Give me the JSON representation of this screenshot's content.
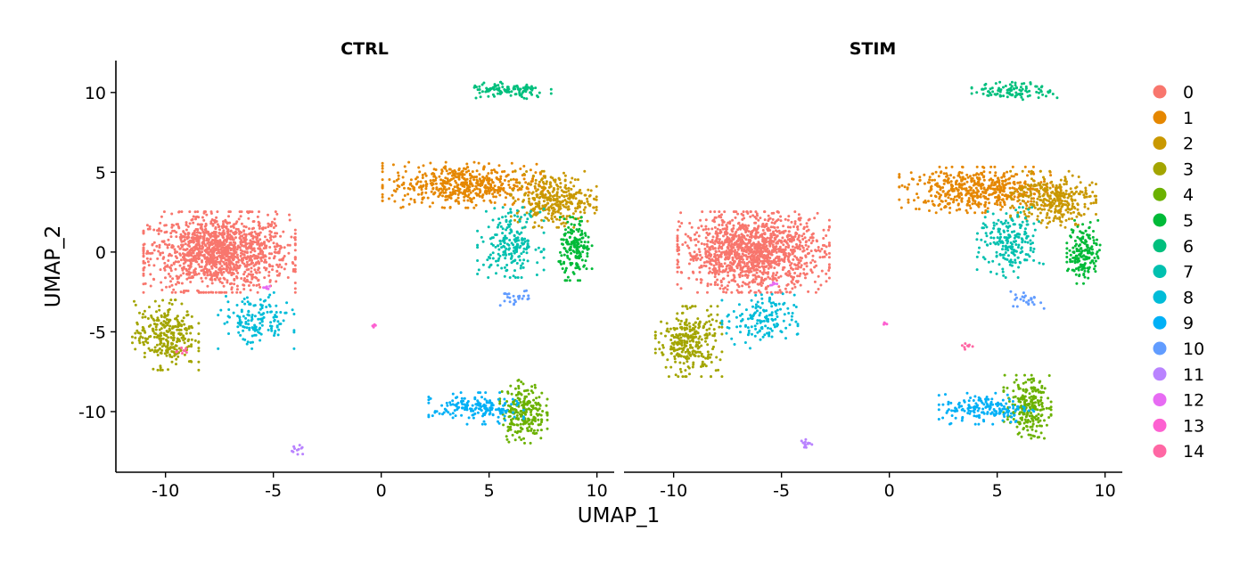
{
  "chart_data": {
    "type": "scatter",
    "facets": [
      {
        "key": "ctrl",
        "title": "CTRL"
      },
      {
        "key": "stim",
        "title": "STIM"
      }
    ],
    "xlabel": "UMAP_1",
    "ylabel": "UMAP_2",
    "xlim": [
      -12.3,
      10.8
    ],
    "ylim": [
      -13.8,
      12.0
    ],
    "x_ticks": [
      -10,
      -5,
      0,
      5,
      10
    ],
    "x_tick_labels": [
      "-10",
      "-5",
      "0",
      "5",
      "10"
    ],
    "y_ticks": [
      10,
      5,
      0,
      -5,
      -10
    ],
    "y_tick_labels": [
      "10",
      "5",
      "0",
      "-5",
      "-10"
    ],
    "grid": false,
    "legend_position": "right",
    "legend": [
      {
        "label": "0",
        "color": "#F8766D"
      },
      {
        "label": "1",
        "color": "#E58700"
      },
      {
        "label": "2",
        "color": "#C99800"
      },
      {
        "label": "3",
        "color": "#A3A500"
      },
      {
        "label": "4",
        "color": "#6BB100"
      },
      {
        "label": "5",
        "color": "#00BA38"
      },
      {
        "label": "6",
        "color": "#00BF7D"
      },
      {
        "label": "7",
        "color": "#00C0AF"
      },
      {
        "label": "8",
        "color": "#00BCD8"
      },
      {
        "label": "9",
        "color": "#00B0F6"
      },
      {
        "label": "10",
        "color": "#619CFF"
      },
      {
        "label": "11",
        "color": "#B983FF"
      },
      {
        "label": "12",
        "color": "#E76BF3"
      },
      {
        "label": "13",
        "color": "#FD61D1"
      },
      {
        "label": "14",
        "color": "#FF67A4"
      }
    ],
    "clusters": {
      "ctrl": [
        {
          "cluster": "0",
          "n": 1300,
          "cx": -7.5,
          "cy": 0.0,
          "sx": 1.6,
          "sy": 1.15
        },
        {
          "cluster": "1",
          "n": 520,
          "cx": 3.8,
          "cy": 4.2,
          "sx": 1.7,
          "sy": 0.65
        },
        {
          "cluster": "2",
          "n": 320,
          "cx": 8.0,
          "cy": 3.3,
          "sx": 0.9,
          "sy": 0.8
        },
        {
          "cluster": "3",
          "n": 300,
          "cx": -10.0,
          "cy": -5.2,
          "sx": 0.7,
          "sy": 1.0
        },
        {
          "cluster": "4",
          "n": 230,
          "cx": 6.6,
          "cy": -10.0,
          "sx": 0.5,
          "sy": 0.9
        },
        {
          "cluster": "5",
          "n": 170,
          "cx": 9.0,
          "cy": 0.2,
          "sx": 0.35,
          "sy": 0.9
        },
        {
          "cluster": "6",
          "n": 110,
          "cx": 5.9,
          "cy": 10.1,
          "sx": 0.9,
          "sy": 0.25
        },
        {
          "cluster": "7",
          "n": 210,
          "cx": 6.0,
          "cy": 0.6,
          "sx": 0.7,
          "sy": 1.0
        },
        {
          "cluster": "8",
          "n": 150,
          "cx": -5.8,
          "cy": -4.3,
          "sx": 0.8,
          "sy": 0.8
        },
        {
          "cluster": "9",
          "n": 170,
          "cx": 4.4,
          "cy": -9.8,
          "sx": 1.0,
          "sy": 0.45
        },
        {
          "cluster": "10",
          "n": 25,
          "cx": 6.2,
          "cy": -2.9,
          "sx": 0.35,
          "sy": 0.25
        },
        {
          "cluster": "11",
          "n": 12,
          "cx": -3.9,
          "cy": -12.4,
          "sx": 0.2,
          "sy": 0.15
        },
        {
          "cluster": "12",
          "n": 6,
          "cx": -5.3,
          "cy": -2.2,
          "sx": 0.12,
          "sy": 0.05
        },
        {
          "cluster": "13",
          "n": 5,
          "cx": -0.3,
          "cy": -4.6,
          "sx": 0.06,
          "sy": 0.06
        },
        {
          "cluster": "14",
          "n": 8,
          "cx": -9.3,
          "cy": -6.2,
          "sx": 0.15,
          "sy": 0.12
        }
      ],
      "stim": [
        {
          "cluster": "0",
          "n": 1300,
          "cx": -6.3,
          "cy": 0.0,
          "sx": 1.6,
          "sy": 1.15
        },
        {
          "cluster": "1",
          "n": 520,
          "cx": 4.2,
          "cy": 3.9,
          "sx": 1.7,
          "sy": 0.65
        },
        {
          "cluster": "2",
          "n": 320,
          "cx": 7.6,
          "cy": 3.3,
          "sx": 0.9,
          "sy": 0.8
        },
        {
          "cluster": "3",
          "n": 300,
          "cx": -9.3,
          "cy": -5.6,
          "sx": 0.7,
          "sy": 1.0
        },
        {
          "cluster": "4",
          "n": 230,
          "cx": 6.4,
          "cy": -9.7,
          "sx": 0.5,
          "sy": 0.9
        },
        {
          "cluster": "5",
          "n": 170,
          "cx": 9.0,
          "cy": 0.0,
          "sx": 0.35,
          "sy": 0.9
        },
        {
          "cluster": "6",
          "n": 110,
          "cx": 5.8,
          "cy": 10.1,
          "sx": 0.9,
          "sy": 0.25
        },
        {
          "cluster": "7",
          "n": 210,
          "cx": 5.6,
          "cy": 0.6,
          "sx": 0.7,
          "sy": 1.0
        },
        {
          "cluster": "8",
          "n": 150,
          "cx": -6.0,
          "cy": -4.3,
          "sx": 0.8,
          "sy": 0.8
        },
        {
          "cluster": "9",
          "n": 170,
          "cx": 4.5,
          "cy": -9.8,
          "sx": 1.0,
          "sy": 0.45
        },
        {
          "cluster": "10",
          "n": 25,
          "cx": 6.4,
          "cy": -3.0,
          "sx": 0.35,
          "sy": 0.25
        },
        {
          "cluster": "11",
          "n": 12,
          "cx": -3.9,
          "cy": -12.0,
          "sx": 0.2,
          "sy": 0.15
        },
        {
          "cluster": "12",
          "n": 6,
          "cx": -5.3,
          "cy": -2.0,
          "sx": 0.12,
          "sy": 0.05
        },
        {
          "cluster": "13",
          "n": 5,
          "cx": -0.2,
          "cy": -4.5,
          "sx": 0.06,
          "sy": 0.06
        },
        {
          "cluster": "14",
          "n": 8,
          "cx": 3.6,
          "cy": -5.9,
          "sx": 0.15,
          "sy": 0.12
        }
      ]
    }
  }
}
